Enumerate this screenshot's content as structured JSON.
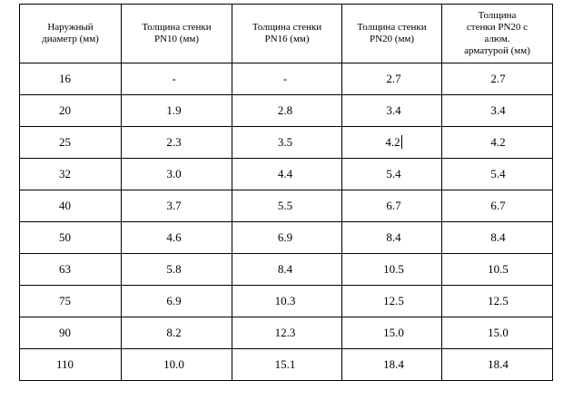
{
  "table": {
    "headers": [
      "Наружный\nдиаметр (мм)",
      "Толщина стенки\nPN10 (мм)",
      "Толщина стенки\nPN16 (мм)",
      "Толщина стенки\nPN20 (мм)",
      "Толщина\nстенки PN20 с\nалюм.\nарматурой (мм)"
    ],
    "rows": [
      [
        "16",
        "-",
        "-",
        "2.7",
        "2.7"
      ],
      [
        "20",
        "1.9",
        "2.8",
        "3.4",
        "3.4"
      ],
      [
        "25",
        "2.3",
        "3.5",
        "4.2",
        "4.2"
      ],
      [
        "32",
        "3.0",
        "4.4",
        "5.4",
        "5.4"
      ],
      [
        "40",
        "3.7",
        "5.5",
        "6.7",
        "6.7"
      ],
      [
        "50",
        "4.6",
        "6.9",
        "8.4",
        "8.4"
      ],
      [
        "63",
        "5.8",
        "8.4",
        "10.5",
        "10.5"
      ],
      [
        "75",
        "6.9",
        "10.3",
        "12.5",
        "12.5"
      ],
      [
        "90",
        "8.2",
        "12.3",
        "15.0",
        "15.0"
      ],
      [
        "110",
        "10.0",
        "15.1",
        "18.4",
        "18.4"
      ]
    ]
  },
  "text_cursor": {
    "row": 2,
    "column": 3
  }
}
